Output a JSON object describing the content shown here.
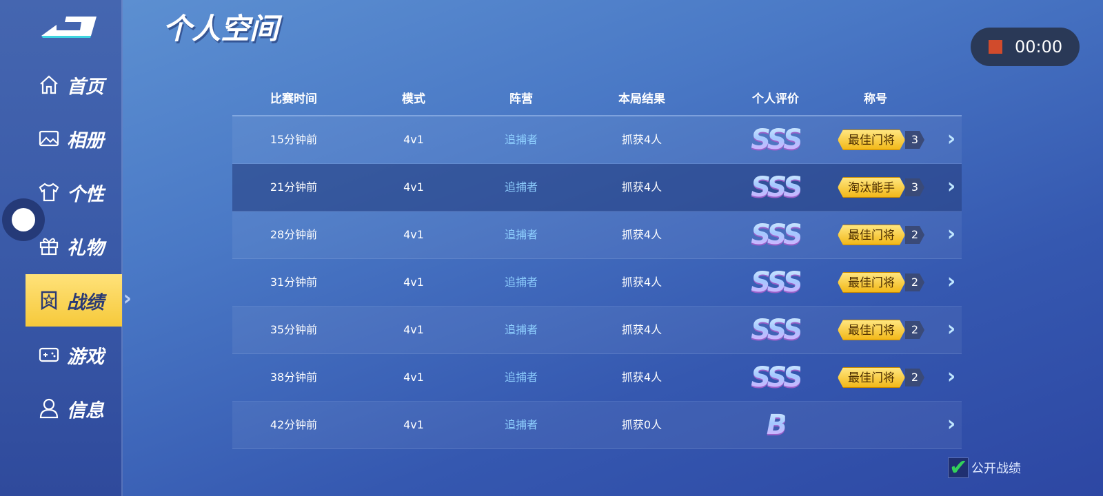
{
  "page_title": "个人空间",
  "sidebar": {
    "items": [
      {
        "label": "首页",
        "icon": "home-icon"
      },
      {
        "label": "相册",
        "icon": "image-icon"
      },
      {
        "label": "个性",
        "icon": "shirt-icon"
      },
      {
        "label": "礼物",
        "icon": "gift-icon"
      },
      {
        "label": "战绩",
        "icon": "badge-icon",
        "active": true
      },
      {
        "label": "游戏",
        "icon": "gamepad-icon"
      },
      {
        "label": "信息",
        "icon": "user-icon"
      }
    ]
  },
  "recorder": {
    "time": "00:00",
    "color": "#d14b2c"
  },
  "table": {
    "headers": [
      "比赛时间",
      "模式",
      "阵营",
      "本局结果",
      "个人评价",
      "称号"
    ],
    "rows": [
      {
        "time": "15分钟前",
        "mode": "4v1",
        "camp": "追捕者",
        "result": "抓获4人",
        "grade": "SSS",
        "title": "最佳门将",
        "count": "3"
      },
      {
        "time": "21分钟前",
        "mode": "4v1",
        "camp": "追捕者",
        "result": "抓获4人",
        "grade": "SSS",
        "title": "淘汰能手",
        "count": "3"
      },
      {
        "time": "28分钟前",
        "mode": "4v1",
        "camp": "追捕者",
        "result": "抓获4人",
        "grade": "SSS",
        "title": "最佳门将",
        "count": "2"
      },
      {
        "time": "31分钟前",
        "mode": "4v1",
        "camp": "追捕者",
        "result": "抓获4人",
        "grade": "SSS",
        "title": "最佳门将",
        "count": "2"
      },
      {
        "time": "35分钟前",
        "mode": "4v1",
        "camp": "追捕者",
        "result": "抓获4人",
        "grade": "SSS",
        "title": "最佳门将",
        "count": "2"
      },
      {
        "time": "38分钟前",
        "mode": "4v1",
        "camp": "追捕者",
        "result": "抓获4人",
        "grade": "SSS",
        "title": "最佳门将",
        "count": "2"
      },
      {
        "time": "42分钟前",
        "mode": "4v1",
        "camp": "追捕者",
        "result": "抓获0人",
        "grade": "B",
        "title": "",
        "count": ""
      }
    ]
  },
  "public_record": {
    "label": "公开战绩",
    "checked": true
  }
}
